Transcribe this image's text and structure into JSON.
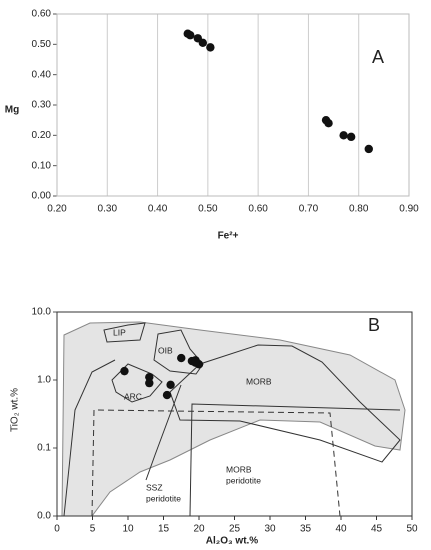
{
  "chart_data": [
    {
      "type": "scatter",
      "xlabel": "Fe²+",
      "ylabel": "Mg",
      "annotation": "A",
      "x": [
        0.46,
        0.465,
        0.48,
        0.49,
        0.505,
        0.735,
        0.74,
        0.77,
        0.785,
        0.82
      ],
      "values": [
        0.535,
        0.53,
        0.52,
        0.505,
        0.49,
        0.25,
        0.24,
        0.2,
        0.195,
        0.155
      ],
      "color": "#111111",
      "xlim": [
        0.2,
        0.9
      ],
      "xticks": [
        {
          "value": 0.2,
          "label": "0.20"
        },
        {
          "value": 0.3,
          "label": "0.30"
        },
        {
          "value": 0.4,
          "label": "0.40"
        },
        {
          "value": 0.5,
          "label": "0.50"
        },
        {
          "value": 0.6,
          "label": "0.60"
        },
        {
          "value": 0.7,
          "label": "0.70"
        },
        {
          "value": 0.8,
          "label": "0.80"
        },
        {
          "value": 0.9,
          "label": "0.90"
        }
      ],
      "ylim": [
        0,
        0.6
      ],
      "yticks": [
        {
          "value": 0,
          "label": "0.00"
        },
        {
          "value": 0.1,
          "label": "0.10"
        },
        {
          "value": 0.2,
          "label": "0.20"
        },
        {
          "value": 0.3,
          "label": "0.30"
        },
        {
          "value": 0.4,
          "label": "0.40"
        },
        {
          "value": 0.5,
          "label": "0.50"
        },
        {
          "value": 0.6,
          "label": "0.60"
        }
      ],
      "grid": "x",
      "log_y": false
    },
    {
      "type": "scatter",
      "xlabel": "Al₂O₃ wt.%",
      "ylabel": "TiO₂ wt.%",
      "annotation": "B",
      "x": [
        9.5,
        13,
        13,
        15.5,
        16,
        17.5,
        19,
        19.5,
        20,
        19.5
      ],
      "values": [
        1.35,
        1.1,
        0.9,
        0.6,
        0.85,
        2.1,
        1.9,
        1.95,
        1.7,
        1.8
      ],
      "color": "#111111",
      "xlim": [
        0,
        50
      ],
      "xticks": [
        0,
        5,
        10,
        15,
        20,
        25,
        30,
        35,
        40,
        45,
        50
      ],
      "ylim": [
        0.01,
        10
      ],
      "yticks": [
        {
          "value": 0.01,
          "label": "0.0"
        },
        {
          "value": 0.1,
          "label": "0.1"
        },
        {
          "value": 1,
          "label": "1.0"
        },
        {
          "value": 10,
          "label": "10.0"
        }
      ],
      "grid": false,
      "log_y": true,
      "field_labels": [
        "LIP",
        "OIB",
        "ARC",
        "MORB",
        [
          "SSZ",
          "peridotite"
        ],
        [
          "MORB",
          "peridotite"
        ]
      ]
    }
  ]
}
